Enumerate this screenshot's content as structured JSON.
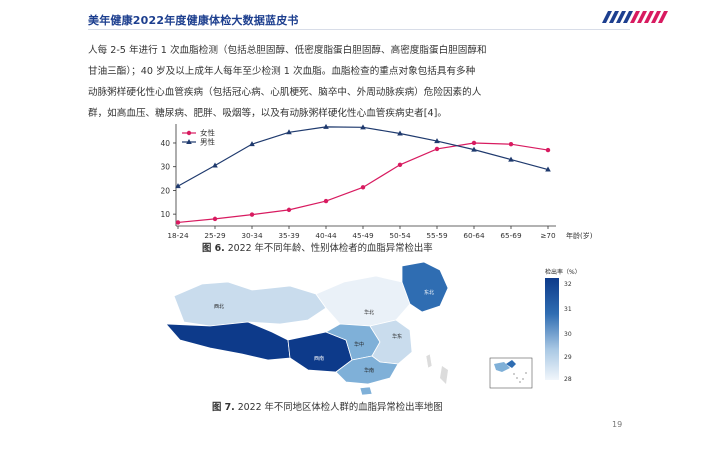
{
  "header": {
    "title": "美年健康2022年度健康体检大数据蓝皮书"
  },
  "paragraph": [
    "人每 2-5 年进行 1 次血脂检测（包括总胆固醇、低密度脂蛋白胆固醇、高密度脂蛋白胆固醇和",
    "甘油三酯）；40 岁及以上成年人每年至少检测 1 次血脂。血脂检查的重点对象包括具有多种",
    "动脉粥样硬化性心血管疾病（包括冠心病、心肌梗死、脑卒中、外周动脉疾病）危险因素的人",
    "群，如高血压、糖尿病、肥胖、吸烟等，以及有动脉粥样硬化性心血管疾病史者[4]。"
  ],
  "chart_data": {
    "type": "line",
    "categories": [
      "18-24",
      "25-29",
      "30-34",
      "35-39",
      "40-44",
      "45-49",
      "50-54",
      "55-59",
      "60-64",
      "65-69",
      "≥70"
    ],
    "xlabel": "年龄(岁)",
    "ylabel": "",
    "yticks": [
      10,
      20,
      30,
      40
    ],
    "ylim": [
      5,
      48
    ],
    "grid": false,
    "legend_position": "top-left",
    "series": [
      {
        "name": "女性",
        "color": "#d81b60",
        "marker": "circle",
        "values": [
          6.5,
          8.0,
          9.8,
          11.8,
          15.5,
          21.3,
          30.8,
          37.5,
          40.0,
          39.5,
          37.0
        ]
      },
      {
        "name": "男性",
        "color": "#1f3a6e",
        "marker": "triangle",
        "values": [
          21.8,
          30.5,
          39.5,
          44.5,
          46.8,
          46.6,
          44.0,
          40.8,
          37.2,
          33.0,
          28.8
        ]
      }
    ]
  },
  "captions": {
    "fig6_num": "图 6.",
    "fig6_text": "2022 年不同年龄、性别体检者的血脂异常检出率",
    "fig7_num": "图 7.",
    "fig7_text": "2022 年不同地区体检人群的血脂异常检出率地图"
  },
  "map": {
    "legend_title": "检出率（%）",
    "legend_ticks": [
      "32",
      "31",
      "30",
      "29",
      "28"
    ],
    "color_scale": [
      "#0d3a8a",
      "#2f6db2",
      "#7fb0d8",
      "#c9dced",
      "#eaf1f8"
    ],
    "regions": [
      {
        "label": "西北",
        "value_color": "#c9dced"
      },
      {
        "label": "华北",
        "value_color": "#eaf1f8"
      },
      {
        "label": "东北",
        "value_color": "#2f6db2"
      },
      {
        "label": "华东",
        "value_color": "#c9dced"
      },
      {
        "label": "华中",
        "value_color": "#7fb0d8"
      },
      {
        "label": "西南",
        "value_color": "#0d3a8a"
      },
      {
        "label": "华南",
        "value_color": "#7fb0d8"
      }
    ]
  },
  "page_number": "19"
}
